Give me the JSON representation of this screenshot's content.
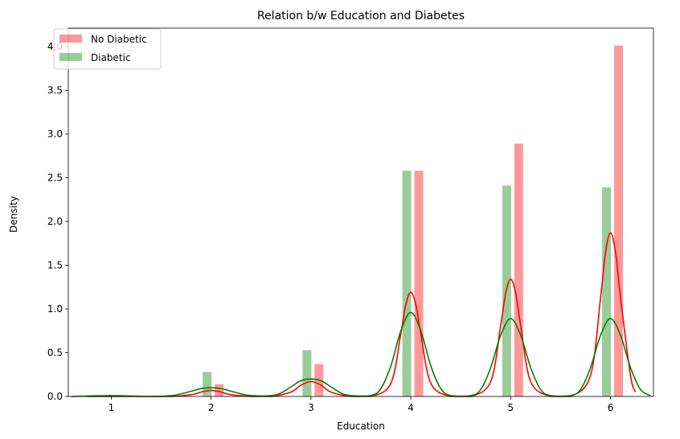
{
  "chart_data": {
    "type": "bar",
    "title": "Relation b/w Education and Diabetes",
    "xlabel": "Education",
    "ylabel": "Density",
    "xlim": [
      0.57,
      6.43
    ],
    "ylim": [
      0,
      4.21
    ],
    "xticks": [
      "1",
      "2",
      "3",
      "4",
      "5",
      "6"
    ],
    "yticks": [
      "0.0",
      "0.5",
      "1.0",
      "1.5",
      "2.0",
      "2.5",
      "3.0",
      "3.5",
      "4.0"
    ],
    "legend_position": "top-left",
    "series": [
      {
        "name": "No Diabetic",
        "color": "#ff0000",
        "bars": [
          {
            "x": 2.0,
            "value": 0.14
          },
          {
            "x": 3.0,
            "value": 0.37
          },
          {
            "x": 4.0,
            "value": 2.58
          },
          {
            "x": 5.0,
            "value": 2.89
          },
          {
            "x": 6.0,
            "value": 4.01
          }
        ],
        "kde": {
          "x": [
            0.75,
            1.0,
            1.25,
            1.6,
            1.8,
            1.9,
            2.0,
            2.1,
            2.2,
            2.4,
            2.6,
            2.8,
            2.9,
            3.0,
            3.1,
            3.2,
            3.4,
            3.6,
            3.8,
            3.9,
            3.95,
            4.0,
            4.05,
            4.1,
            4.2,
            4.4,
            4.6,
            4.8,
            4.9,
            4.95,
            5.0,
            5.05,
            5.1,
            5.2,
            5.4,
            5.6,
            5.8,
            5.9,
            5.95,
            6.0,
            6.05,
            6.1,
            6.2,
            6.25
          ],
          "y": [
            0.0,
            0.0,
            0.0,
            0.0,
            0.02,
            0.05,
            0.07,
            0.05,
            0.02,
            0.0,
            0.0,
            0.05,
            0.13,
            0.17,
            0.13,
            0.05,
            0.0,
            0.0,
            0.15,
            0.72,
            1.05,
            1.19,
            1.05,
            0.72,
            0.15,
            0.0,
            0.0,
            0.17,
            0.81,
            1.18,
            1.34,
            1.18,
            0.81,
            0.17,
            0.0,
            0.0,
            0.24,
            1.13,
            1.65,
            1.87,
            1.65,
            1.13,
            0.24,
            0.05
          ]
        }
      },
      {
        "name": "Diabetic",
        "color": "#008000",
        "bars": [
          {
            "x": 2.0,
            "value": 0.28
          },
          {
            "x": 3.0,
            "value": 0.53
          },
          {
            "x": 4.0,
            "value": 2.58
          },
          {
            "x": 5.0,
            "value": 2.41
          },
          {
            "x": 6.0,
            "value": 2.39
          }
        ],
        "kde": {
          "x": [
            0.6,
            1.0,
            1.4,
            1.6,
            1.7,
            1.8,
            1.9,
            2.0,
            2.1,
            2.2,
            2.3,
            2.4,
            2.6,
            2.7,
            2.8,
            2.9,
            3.0,
            3.1,
            3.2,
            3.3,
            3.4,
            3.6,
            3.7,
            3.8,
            3.9,
            4.0,
            4.1,
            4.2,
            4.3,
            4.4,
            4.6,
            4.7,
            4.8,
            4.9,
            5.0,
            5.1,
            5.2,
            5.3,
            5.4,
            5.6,
            5.7,
            5.8,
            5.9,
            6.0,
            6.1,
            6.2,
            6.3,
            6.4
          ],
          "y": [
            0.0,
            0.01,
            0.0,
            0.01,
            0.03,
            0.06,
            0.09,
            0.1,
            0.09,
            0.06,
            0.03,
            0.01,
            0.01,
            0.04,
            0.11,
            0.18,
            0.2,
            0.18,
            0.11,
            0.04,
            0.01,
            0.01,
            0.09,
            0.35,
            0.75,
            0.96,
            0.75,
            0.35,
            0.09,
            0.01,
            0.01,
            0.08,
            0.33,
            0.7,
            0.89,
            0.7,
            0.33,
            0.08,
            0.01,
            0.01,
            0.08,
            0.33,
            0.7,
            0.89,
            0.7,
            0.33,
            0.08,
            0.01
          ]
        }
      }
    ]
  }
}
